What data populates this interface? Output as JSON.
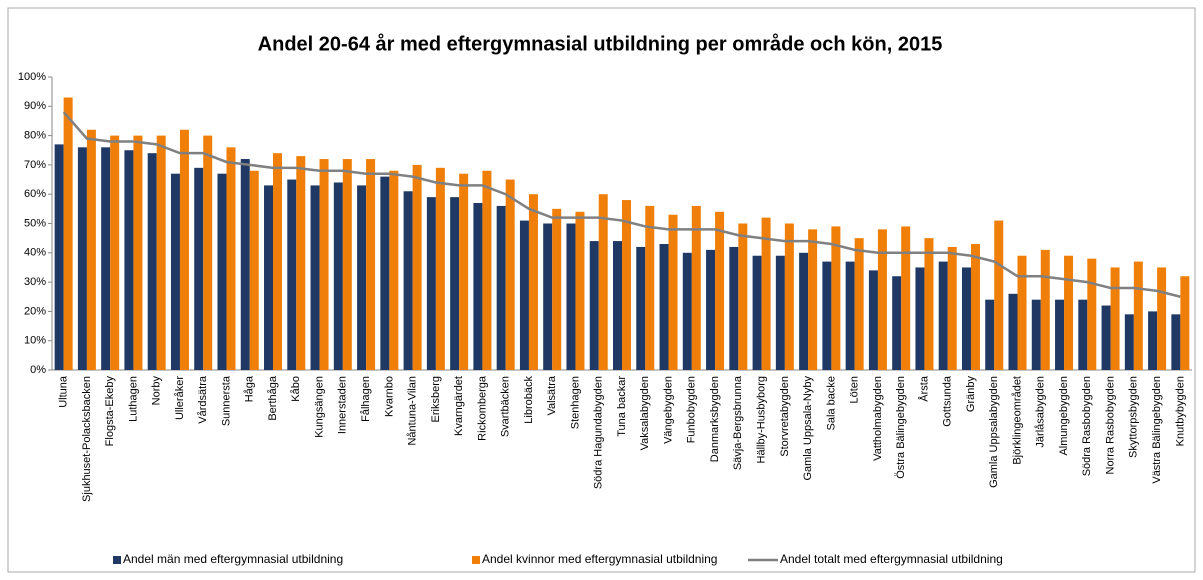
{
  "chart_data": {
    "type": "bar",
    "title": "Andel 20-64 år med eftergymnasial utbildning per område och kön, 2015",
    "categories": [
      "Ultuna",
      "Sjukhuset-Polacksbacken",
      "Flogsta-Ekeby",
      "Luthagen",
      "Norby",
      "Ulleråker",
      "Vårdsätra",
      "Sunnersta",
      "Håga",
      "Berthåga",
      "Kåbo",
      "Kungsängen",
      "Innerstaden",
      "Fålhagen",
      "Kvarnbo",
      "Nåntuna-Vilan",
      "Eriksberg",
      "Kvarngärdet",
      "Rickomberga",
      "Svartbäcken",
      "Librobäck",
      "Valsätra",
      "Stenhagen",
      "Södra Hagundabygden",
      "Tuna backar",
      "Vaksalabygden",
      "Vängebygden",
      "Funbobygden",
      "Danmarksbygden",
      "Sävja-Bergsbrunna",
      "Hällby-Husbyborg",
      "Storvretabygden",
      "Gamla Uppsala-Nyby",
      "Sala backe",
      "Löten",
      "Vattholmabygden",
      "Östra Bälingebygden",
      "Årsta",
      "Gottsunda",
      "Gränby",
      "Gamla Uppsalabygden",
      "Björklingeområdet",
      "Järlåsabygden",
      "Almungebygden",
      "Södra Rasbobygden",
      "Norra Rasbobygden",
      "Skyttorpsbygden",
      "Västra Bälingebygden",
      "Knutbybygden"
    ],
    "series": [
      {
        "name": "Andel män med eftergymnasial utbildning",
        "color": "#1f3864",
        "kind": "bar",
        "values": [
          77,
          76,
          76,
          75,
          74,
          67,
          69,
          67,
          72,
          63,
          65,
          63,
          64,
          63,
          66,
          61,
          59,
          59,
          57,
          56,
          51,
          50,
          50,
          44,
          44,
          42,
          43,
          40,
          41,
          42,
          39,
          39,
          40,
          37,
          37,
          34,
          32,
          35,
          37,
          35,
          24,
          26,
          24,
          24,
          24,
          22,
          19,
          20,
          19
        ]
      },
      {
        "name": "Andel kvinnor med eftergymnasial utbildning",
        "color": "#f07f09",
        "kind": "bar",
        "values": [
          93,
          82,
          80,
          80,
          80,
          82,
          80,
          76,
          68,
          74,
          73,
          72,
          72,
          72,
          68,
          70,
          69,
          67,
          68,
          65,
          60,
          55,
          54,
          60,
          58,
          56,
          53,
          56,
          54,
          50,
          52,
          50,
          48,
          49,
          45,
          48,
          49,
          45,
          42,
          43,
          51,
          39,
          41,
          39,
          38,
          35,
          37,
          35,
          32
        ]
      },
      {
        "name": "Andel totalt med eftergymnasial utbildning",
        "color": "#808080",
        "kind": "line",
        "values": [
          88,
          79,
          78,
          78,
          77,
          74,
          74,
          71,
          70,
          69,
          69,
          68,
          68,
          67,
          67,
          66,
          64,
          63,
          63,
          60,
          55,
          52,
          52,
          52,
          51,
          49,
          48,
          48,
          48,
          46,
          45,
          44,
          44,
          43,
          41,
          40,
          40,
          40,
          40,
          39,
          37,
          32,
          32,
          31,
          30,
          28,
          28,
          27,
          25
        ]
      }
    ],
    "ylim": [
      0,
      100
    ],
    "yticks": [
      {
        "value": 0,
        "label": "0%"
      },
      {
        "value": 10,
        "label": "10%"
      },
      {
        "value": 20,
        "label": "20%"
      },
      {
        "value": 30,
        "label": "30%"
      },
      {
        "value": 40,
        "label": "40%"
      },
      {
        "value": 50,
        "label": "50%"
      },
      {
        "value": 60,
        "label": "60%"
      },
      {
        "value": 70,
        "label": "70%"
      },
      {
        "value": 80,
        "label": "80%"
      },
      {
        "value": 90,
        "label": "90%"
      },
      {
        "value": 100,
        "label": "100%"
      }
    ],
    "grid": false
  }
}
